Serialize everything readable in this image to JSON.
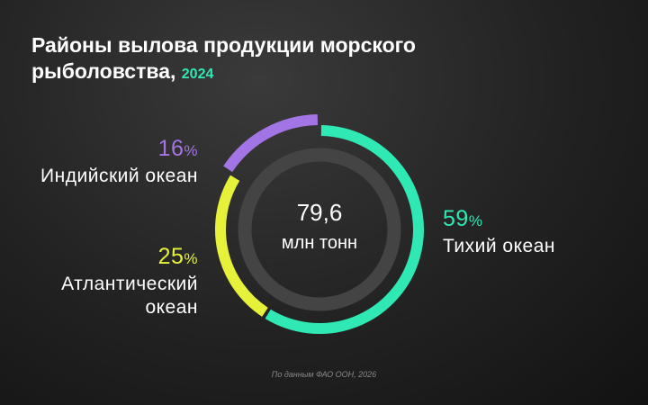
{
  "chart_data": {
    "type": "donut",
    "title": "Районы вылова продукции морского рыболовства,",
    "year": "2024",
    "categories": [
      "Тихий океан",
      "Атлантический океан",
      "Индийский океан"
    ],
    "values": [
      59,
      25,
      16
    ],
    "unit": "%",
    "colors": [
      "#2fe8b4",
      "#e6f23a",
      "#a374e6"
    ],
    "total": {
      "value": 79.6,
      "label": "79,6"
    },
    "total_unit": "млн тонн",
    "source": "По данным ФАО ООН, 2026"
  }
}
